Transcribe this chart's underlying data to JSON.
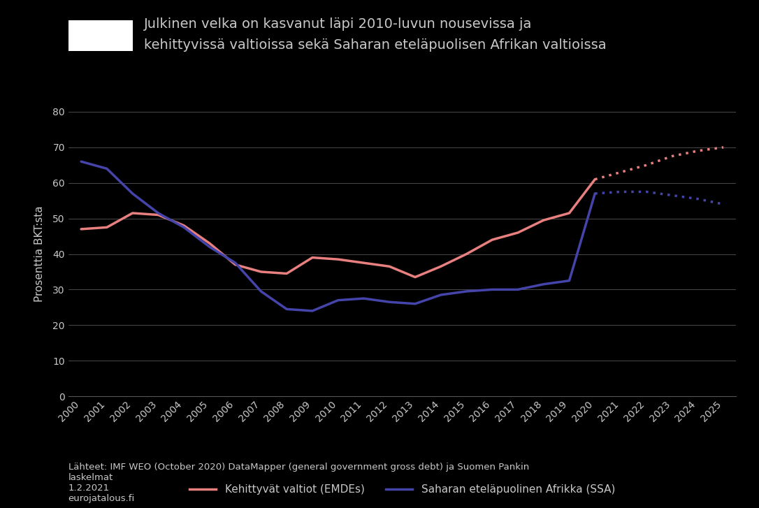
{
  "title_line1": "Julkinen velka on kasvanut läpi 2010-luvun nousevissa ja",
  "title_line2": "kehittyvissä valtioissa sekä Saharan eteläpuolisen Afrikan valtioissa",
  "ylabel": "Prosenttia BKT:sta",
  "background_color": "#000000",
  "text_color": "#c8c8c8",
  "years_solid": [
    2000,
    2001,
    2002,
    2003,
    2004,
    2005,
    2006,
    2007,
    2008,
    2009,
    2010,
    2011,
    2012,
    2013,
    2014,
    2015,
    2016,
    2017,
    2018,
    2019,
    2020
  ],
  "emde_solid": [
    47.0,
    47.5,
    51.5,
    51.0,
    48.0,
    43.0,
    37.0,
    35.0,
    34.5,
    39.0,
    38.5,
    37.5,
    36.5,
    33.5,
    36.5,
    40.0,
    44.0,
    46.0,
    49.5,
    51.5,
    61.0
  ],
  "ssa_solid": [
    66.0,
    64.0,
    57.0,
    51.5,
    47.5,
    42.0,
    37.5,
    29.5,
    24.5,
    24.0,
    27.0,
    27.5,
    26.5,
    26.0,
    28.5,
    29.5,
    30.0,
    30.0,
    31.5,
    32.5,
    57.0
  ],
  "years_dotted": [
    2020,
    2021,
    2022,
    2023,
    2024,
    2025
  ],
  "emde_dotted": [
    61.0,
    63.0,
    65.0,
    67.5,
    69.0,
    70.0
  ],
  "ssa_dotted": [
    57.0,
    57.5,
    57.5,
    56.5,
    55.5,
    54.0
  ],
  "emde_color": "#e88080",
  "ssa_color": "#4444aa",
  "ylim": [
    0,
    80
  ],
  "yticks": [
    0,
    10,
    20,
    30,
    40,
    50,
    60,
    70,
    80
  ],
  "legend_label_emde": "Kehittyvät valtiot (EMDEs)",
  "legend_label_ssa": "Saharan eteläpuolinen Afrikka (SSA)",
  "footnote": "Lähteet: IMF WEO (October 2020) DataMapper (general government gross debt) ja Suomen Pankin\nlaskelmat\n1.2.2021\neurojatalous.fi"
}
